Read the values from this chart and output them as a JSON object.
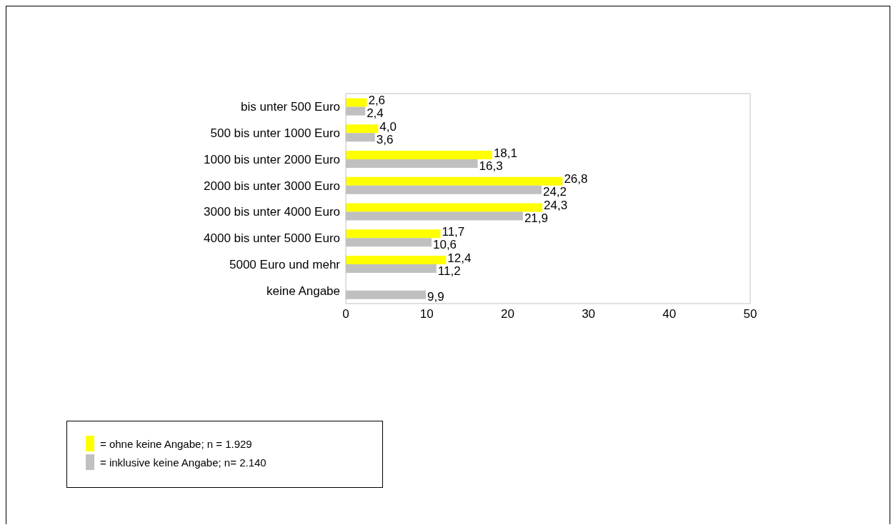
{
  "chart_data": {
    "type": "bar",
    "orientation": "horizontal",
    "categories": [
      "bis unter 500 Euro",
      "500 bis unter 1000 Euro",
      "1000 bis unter 2000 Euro",
      "2000 bis unter 3000 Euro",
      "3000 bis unter 4000 Euro",
      "4000 bis unter 5000 Euro",
      "5000 Euro und mehr",
      "keine Angabe"
    ],
    "series": [
      {
        "name": "= ohne keine Angabe; n = 1.929",
        "color": "#ffff00",
        "values": [
          2.6,
          4.0,
          18.1,
          26.8,
          24.3,
          11.7,
          12.4,
          null
        ],
        "value_labels": [
          "2,6",
          "4,0",
          "18,1",
          "26,8",
          "24,3",
          "11,7",
          "12,4",
          null
        ]
      },
      {
        "name": "= inklusive keine Angabe; n= 2.140",
        "color": "#c0c0c0",
        "values": [
          2.4,
          3.6,
          16.3,
          24.2,
          21.9,
          10.6,
          11.2,
          9.9
        ],
        "value_labels": [
          "2,4",
          "3,6",
          "16,3",
          "24,2",
          "21,9",
          "10,6",
          "11,2",
          "9,9"
        ]
      }
    ],
    "xlim": [
      0,
      50
    ],
    "xticks": [
      0,
      10,
      20,
      30,
      40,
      50
    ],
    "legend": "bottom left"
  }
}
